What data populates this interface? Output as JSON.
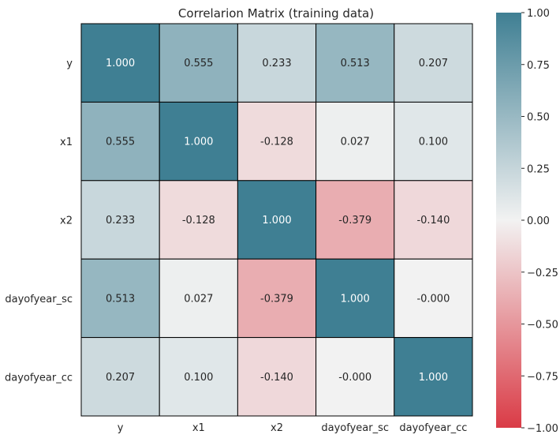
{
  "chart_data": {
    "type": "heatmap",
    "title": "Correlarion Matrix (training data)",
    "xlabel": "",
    "ylabel": "",
    "row_labels": [
      "y",
      "x1",
      "x2",
      "dayofyear_sc",
      "dayofyear_cc"
    ],
    "col_labels": [
      "y",
      "x1",
      "x2",
      "dayofyear_sc",
      "dayofyear_cc"
    ],
    "values": [
      [
        1.0,
        0.555,
        0.233,
        0.513,
        0.207
      ],
      [
        0.555,
        1.0,
        -0.128,
        0.027,
        0.1
      ],
      [
        0.233,
        -0.128,
        1.0,
        -0.379,
        -0.14
      ],
      [
        0.513,
        0.027,
        -0.379,
        1.0,
        -0.0
      ],
      [
        0.207,
        0.1,
        -0.14,
        -0.0,
        1.0
      ]
    ],
    "value_labels": [
      [
        "1.000",
        "0.555",
        "0.233",
        "0.513",
        "0.207"
      ],
      [
        "0.555",
        "1.000",
        "-0.128",
        "0.027",
        "0.100"
      ],
      [
        "0.233",
        "-0.128",
        "1.000",
        "-0.379",
        "-0.140"
      ],
      [
        "0.513",
        "0.027",
        "-0.379",
        "1.000",
        "-0.000"
      ],
      [
        "0.207",
        "0.100",
        "-0.140",
        "-0.000",
        "1.000"
      ]
    ],
    "vmin": -1.0,
    "vmax": 1.0,
    "colorbar_ticks": [
      1.0,
      0.75,
      0.5,
      0.25,
      0.0,
      -0.25,
      -0.5,
      -0.75,
      -1.0
    ],
    "colorbar_tick_labels": [
      "1.00",
      "0.75",
      "0.50",
      "0.25",
      "0.00",
      "−0.25",
      "−0.50",
      "−0.75",
      "−1.00"
    ],
    "colors": {
      "negative": "#DA3B46",
      "center": "#F2F2F2",
      "positive": "#3F7F93",
      "grid_line": "#000000",
      "text": "#262626",
      "cell_text_light": "#FFFFFF"
    }
  }
}
